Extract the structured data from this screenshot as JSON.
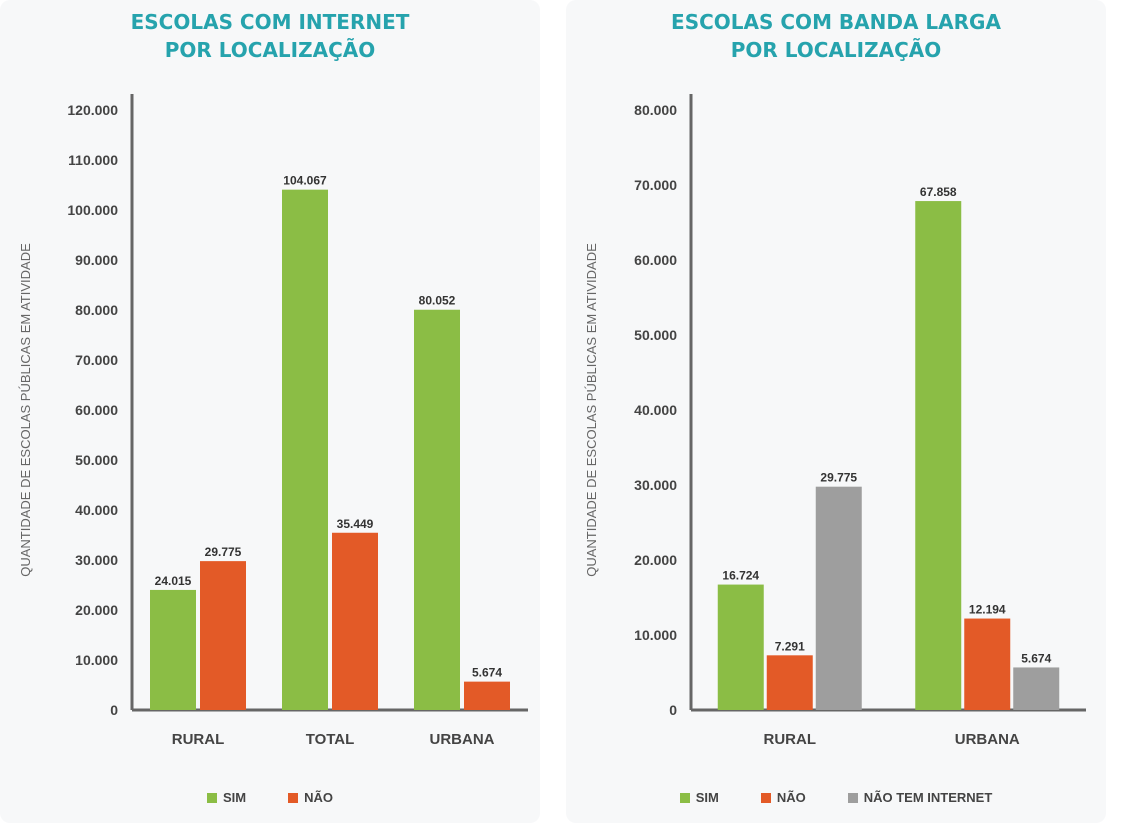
{
  "colors": {
    "sim": "#8bbd45",
    "nao": "#e35a27",
    "sem_internet": "#9e9e9e",
    "title": "#26a3ad",
    "axis": "#666666"
  },
  "chart_data": [
    {
      "type": "bar",
      "title_lines": [
        "ESCOLAS COM INTERNET",
        "POR LOCALIZAÇÃO"
      ],
      "ylabel": "QUANTIDADE DE ESCOLAS PÚBLICAS EM ATIVIDADE",
      "ylim": [
        0,
        120000
      ],
      "yticks": [
        "0",
        "10.000",
        "20.000",
        "30.000",
        "40.000",
        "50.000",
        "60.000",
        "70.000",
        "80.000",
        "90.000",
        "100.000",
        "110.000",
        "120.000"
      ],
      "categories": [
        "RURAL",
        "TOTAL",
        "URBANA"
      ],
      "series": [
        {
          "name": "SIM",
          "color": "#8bbd45",
          "values": [
            24015,
            104067,
            80052
          ],
          "labels": [
            "24.015",
            "104.067",
            "80.052"
          ]
        },
        {
          "name": "NÃO",
          "color": "#e35a27",
          "values": [
            29775,
            35449,
            5674
          ],
          "labels": [
            "29.775",
            "35.449",
            "5.674"
          ]
        }
      ],
      "legend_position": "bottom"
    },
    {
      "type": "bar",
      "title_lines": [
        "ESCOLAS COM BANDA LARGA",
        "POR LOCALIZAÇÃO"
      ],
      "ylabel": "QUANTIDADE DE ESCOLAS PÚBLICAS EM ATIVIDADE",
      "ylim": [
        0,
        80000
      ],
      "yticks": [
        "0",
        "10.000",
        "20.000",
        "30.000",
        "40.000",
        "50.000",
        "60.000",
        "70.000",
        "80.000"
      ],
      "categories": [
        "RURAL",
        "URBANA"
      ],
      "series": [
        {
          "name": "SIM",
          "color": "#8bbd45",
          "values": [
            16724,
            67858
          ],
          "labels": [
            "16.724",
            "67.858"
          ]
        },
        {
          "name": "NÃO",
          "color": "#e35a27",
          "values": [
            7291,
            12194
          ],
          "labels": [
            "7.291",
            "12.194"
          ]
        },
        {
          "name": "NÃO TEM INTERNET",
          "color": "#9e9e9e",
          "values": [
            29775,
            5674
          ],
          "labels": [
            "29.775",
            "5.674"
          ]
        }
      ],
      "legend_position": "bottom"
    }
  ]
}
